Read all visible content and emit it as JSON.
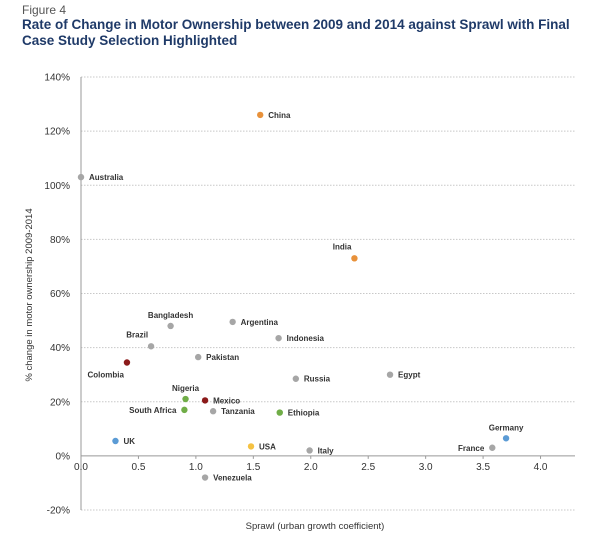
{
  "figure_label": "Figure 4",
  "colors": {
    "grid": "#c8c8c8",
    "axis": "#999999",
    "gray": "#a6a6a6",
    "orange": "#e8913a",
    "blue": "#5b9bd5",
    "green": "#70ad47",
    "darkred": "#8b1a1a",
    "yellow": "#f5c242"
  },
  "chart_data": {
    "type": "scatter",
    "title": "Rate of Change in Motor Ownership between 2009 and 2014 against Sprawl with Final Case Study Selection Highlighted",
    "xlabel": "Sprawl (urban growth coefficient)",
    "ylabel": "% change in motor ownership 2009-2014",
    "xlim": [
      0,
      4.3
    ],
    "ylim": [
      -20,
      140
    ],
    "xticks": [
      "0.0",
      "0.5",
      "1.0",
      "1.5",
      "2.0",
      "2.5",
      "3.0",
      "3.5",
      "4.0"
    ],
    "xtick_values": [
      0,
      0.5,
      1.0,
      1.5,
      2.0,
      2.5,
      3.0,
      3.5,
      4.0
    ],
    "yticks": [
      "-20%",
      "0%",
      "20%",
      "40%",
      "60%",
      "80%",
      "100%",
      "120%",
      "140%"
    ],
    "ytick_values": [
      -20,
      0,
      20,
      40,
      60,
      80,
      100,
      120,
      140
    ],
    "grid": "horizontal",
    "points": [
      {
        "label": "China",
        "x": 1.56,
        "y": 126,
        "color": "orange",
        "pos": "right"
      },
      {
        "label": "Australia",
        "x": 0.0,
        "y": 103,
        "color": "gray",
        "pos": "right"
      },
      {
        "label": "India",
        "x": 2.38,
        "y": 73,
        "color": "orange",
        "pos": "above-left"
      },
      {
        "label": "Bangladesh",
        "x": 0.78,
        "y": 48,
        "color": "gray",
        "pos": "above"
      },
      {
        "label": "Argentina",
        "x": 1.32,
        "y": 49.5,
        "color": "gray",
        "pos": "right"
      },
      {
        "label": "Indonesia",
        "x": 1.72,
        "y": 43.5,
        "color": "gray",
        "pos": "right"
      },
      {
        "label": "Brazil",
        "x": 0.61,
        "y": 40.5,
        "color": "gray",
        "pos": "above-left"
      },
      {
        "label": "Pakistan",
        "x": 1.02,
        "y": 36.5,
        "color": "gray",
        "pos": "right"
      },
      {
        "label": "Colombia",
        "x": 0.4,
        "y": 34.5,
        "color": "darkred",
        "pos": "below-left"
      },
      {
        "label": "Egypt",
        "x": 2.69,
        "y": 30,
        "color": "gray",
        "pos": "right"
      },
      {
        "label": "Russia",
        "x": 1.87,
        "y": 28.5,
        "color": "gray",
        "pos": "right"
      },
      {
        "label": "Nigeria",
        "x": 0.91,
        "y": 21,
        "color": "green",
        "pos": "above"
      },
      {
        "label": "Mexico",
        "x": 1.08,
        "y": 20.5,
        "color": "darkred",
        "pos": "right"
      },
      {
        "label": "South Africa",
        "x": 0.9,
        "y": 17,
        "color": "green",
        "pos": "left"
      },
      {
        "label": "Tanzania",
        "x": 1.15,
        "y": 16.5,
        "color": "gray",
        "pos": "right"
      },
      {
        "label": "Ethiopia",
        "x": 1.73,
        "y": 16,
        "color": "green",
        "pos": "right"
      },
      {
        "label": "Germany",
        "x": 3.7,
        "y": 6.5,
        "color": "blue",
        "pos": "above"
      },
      {
        "label": "UK",
        "x": 0.3,
        "y": 5.5,
        "color": "blue",
        "pos": "right"
      },
      {
        "label": "USA",
        "x": 1.48,
        "y": 3.5,
        "color": "yellow",
        "pos": "right"
      },
      {
        "label": "France",
        "x": 3.58,
        "y": 3,
        "color": "gray",
        "pos": "left"
      },
      {
        "label": "Italy",
        "x": 1.99,
        "y": 2,
        "color": "gray",
        "pos": "right"
      },
      {
        "label": "Venezuela",
        "x": 1.08,
        "y": -8,
        "color": "gray",
        "pos": "right"
      }
    ]
  }
}
